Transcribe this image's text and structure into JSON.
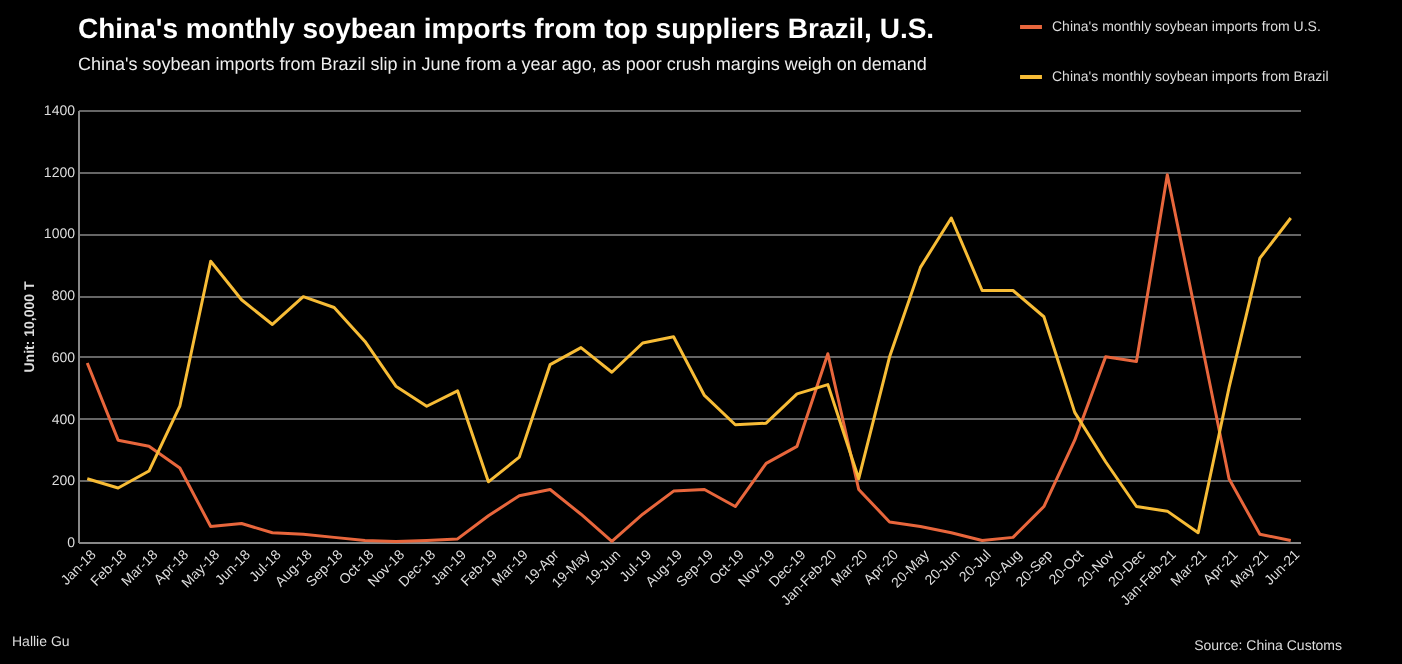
{
  "chart_data": {
    "type": "line",
    "title": "China's monthly soybean imports from top suppliers Brazil, U.S.",
    "subtitle": "China's soybean imports from Brazil slip in June from a year ago, as poor crush margins weigh on demand",
    "ylabel": "Unit: 10,000 T",
    "categories": [
      "Jan-18",
      "Feb-18",
      "Mar-18",
      "Apr-18",
      "May-18",
      "Jun-18",
      "Jul-18",
      "Aug-18",
      "Sep-18",
      "Oct-18",
      "Nov-18",
      "Dec-18",
      "Jan-19",
      "Feb-19",
      "Mar-19",
      "19-Apr",
      "19-May",
      "19-Jun",
      "Jul-19",
      "Aug-19",
      "Sep-19",
      "Oct-19",
      "Nov-19",
      "Dec-19",
      "Jan-Feb-20",
      "Mar-20",
      "Apr-20",
      "20-May",
      "20-Jun",
      "20-Jul",
      "20-Aug",
      "20-Sep",
      "20-Oct",
      "20-Nov",
      "20-Dec",
      "Jan-Feb-21",
      "Mar-21",
      "Apr-21",
      "May-21",
      "Jun-21"
    ],
    "series": [
      {
        "name": "China's monthly soybean imports from U.S.",
        "color": "#e8663c",
        "values": [
          580,
          330,
          310,
          240,
          50,
          60,
          30,
          25,
          15,
          5,
          2,
          5,
          10,
          85,
          150,
          170,
          90,
          2,
          90,
          165,
          170,
          115,
          255,
          310,
          610,
          170,
          65,
          50,
          30,
          5,
          15,
          115,
          330,
          600,
          585,
          1190,
          700,
          205,
          25,
          5
        ]
      },
      {
        "name": "China's monthly soybean imports from Brazil",
        "color": "#f7bc36",
        "values": [
          205,
          175,
          230,
          440,
          910,
          785,
          705,
          795,
          760,
          650,
          505,
          440,
          490,
          195,
          275,
          575,
          630,
          550,
          645,
          665,
          475,
          380,
          385,
          480,
          510,
          205,
          600,
          890,
          1050,
          815,
          815,
          730,
          420,
          260,
          115,
          100,
          30,
          500,
          920,
          1050
        ]
      }
    ],
    "ylim": [
      0,
      1400
    ],
    "yticks": [
      0,
      200,
      400,
      600,
      800,
      1000,
      1200,
      1400
    ],
    "grid": "y",
    "legend": "top right",
    "marker": "none",
    "line_style": "solid",
    "annotations": [
      "Hallie Gu",
      "Source: China Customs"
    ]
  }
}
